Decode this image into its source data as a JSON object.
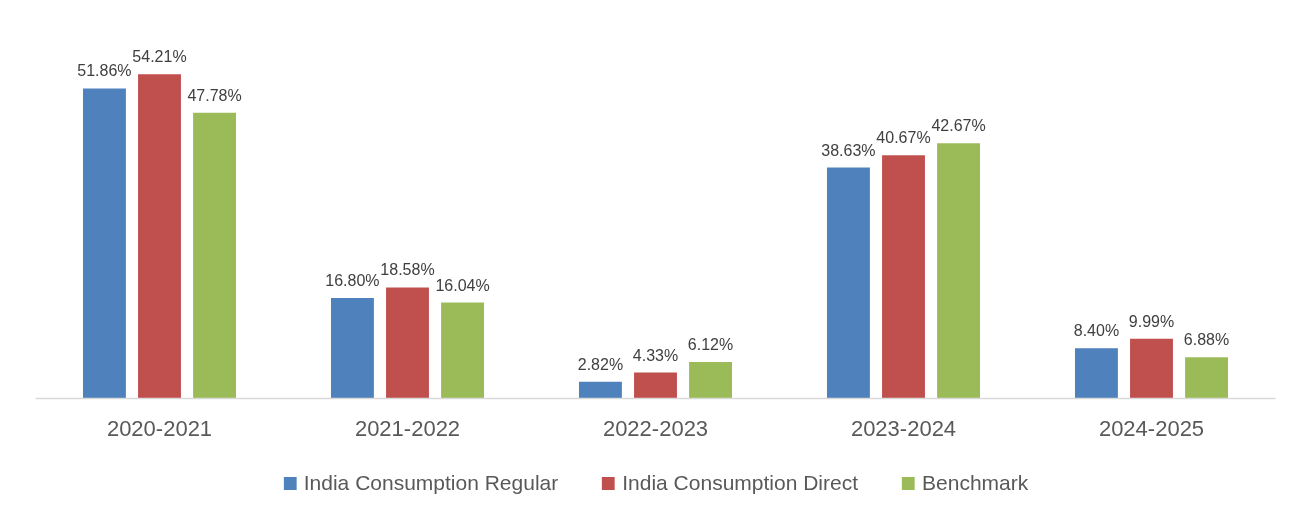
{
  "chart_data": {
    "type": "bar",
    "categories": [
      "2020-2021",
      "2021-2022",
      "2022-2023",
      "2023-2024",
      "2024-2025"
    ],
    "series": [
      {
        "name": "India Consumption Regular",
        "color": "#4f81bd",
        "values": [
          51.86,
          16.8,
          2.82,
          38.63,
          8.4
        ],
        "value_labels": [
          "51.86%",
          "16.80%",
          "2.82%",
          "38.63%",
          "8.40%"
        ]
      },
      {
        "name": "India Consumption Direct",
        "color": "#c0504d",
        "values": [
          54.21,
          18.58,
          4.33,
          40.67,
          9.99
        ],
        "value_labels": [
          "54.21%",
          "18.58%",
          "4.33%",
          "40.67%",
          "9.99%"
        ]
      },
      {
        "name": "Benchmark",
        "color": "#9bbb59",
        "values": [
          47.78,
          16.04,
          6.12,
          42.67,
          6.88
        ],
        "value_labels": [
          "47.78%",
          "16.04%",
          "6.12%",
          "42.67%",
          "6.88%"
        ]
      }
    ],
    "legend": "bottom"
  }
}
